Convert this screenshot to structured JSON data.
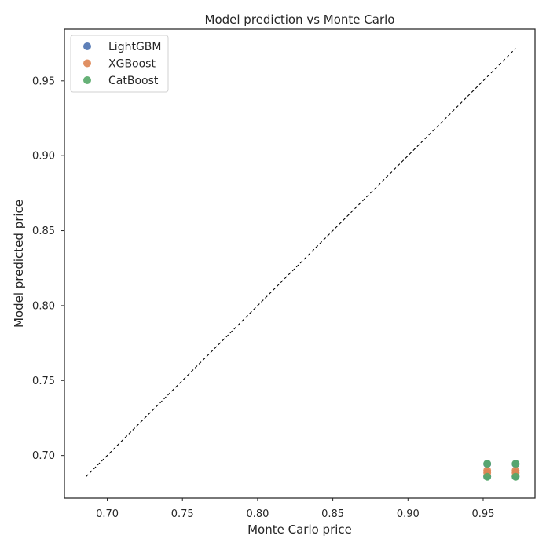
{
  "chart_data": {
    "type": "scatter",
    "title": "Model prediction vs Monte Carlo",
    "xlabel": "Monte Carlo price",
    "ylabel": "Model predicted price",
    "xlim": [
      0.6715,
      0.9845
    ],
    "ylim": [
      0.6715,
      0.9845
    ],
    "xticks": [
      0.7,
      0.75,
      0.8,
      0.85,
      0.9,
      0.95
    ],
    "yticks": [
      0.7,
      0.75,
      0.8,
      0.85,
      0.9,
      0.95
    ],
    "x_tick_labels": [
      "0.70",
      "0.75",
      "0.80",
      "0.85",
      "0.90",
      "0.95"
    ],
    "y_tick_labels": [
      "0.70",
      "0.75",
      "0.80",
      "0.85",
      "0.90",
      "0.95"
    ],
    "grid": false,
    "legend_position": "top-left",
    "reference_line": {
      "style": "dashed",
      "color": "#000000",
      "points": [
        [
          0.6858,
          0.6858
        ],
        [
          0.9716,
          0.9716
        ]
      ]
    },
    "series": [
      {
        "name": "LightGBM",
        "color": "#4c72b0",
        "points": [
          [
            0.9527,
            0.686
          ],
          [
            0.9527,
            0.6943
          ],
          [
            0.9716,
            0.686
          ],
          [
            0.9716,
            0.6943
          ]
        ]
      },
      {
        "name": "XGBoost",
        "color": "#dd8452",
        "points": [
          [
            0.9527,
            0.69
          ],
          [
            0.9527,
            0.6885
          ],
          [
            0.9716,
            0.69
          ],
          [
            0.9716,
            0.6885
          ]
        ]
      },
      {
        "name": "CatBoost",
        "color": "#55a868",
        "points": [
          [
            0.9527,
            0.6858
          ],
          [
            0.9527,
            0.6945
          ],
          [
            0.9716,
            0.6858
          ],
          [
            0.9716,
            0.6945
          ]
        ]
      }
    ]
  }
}
